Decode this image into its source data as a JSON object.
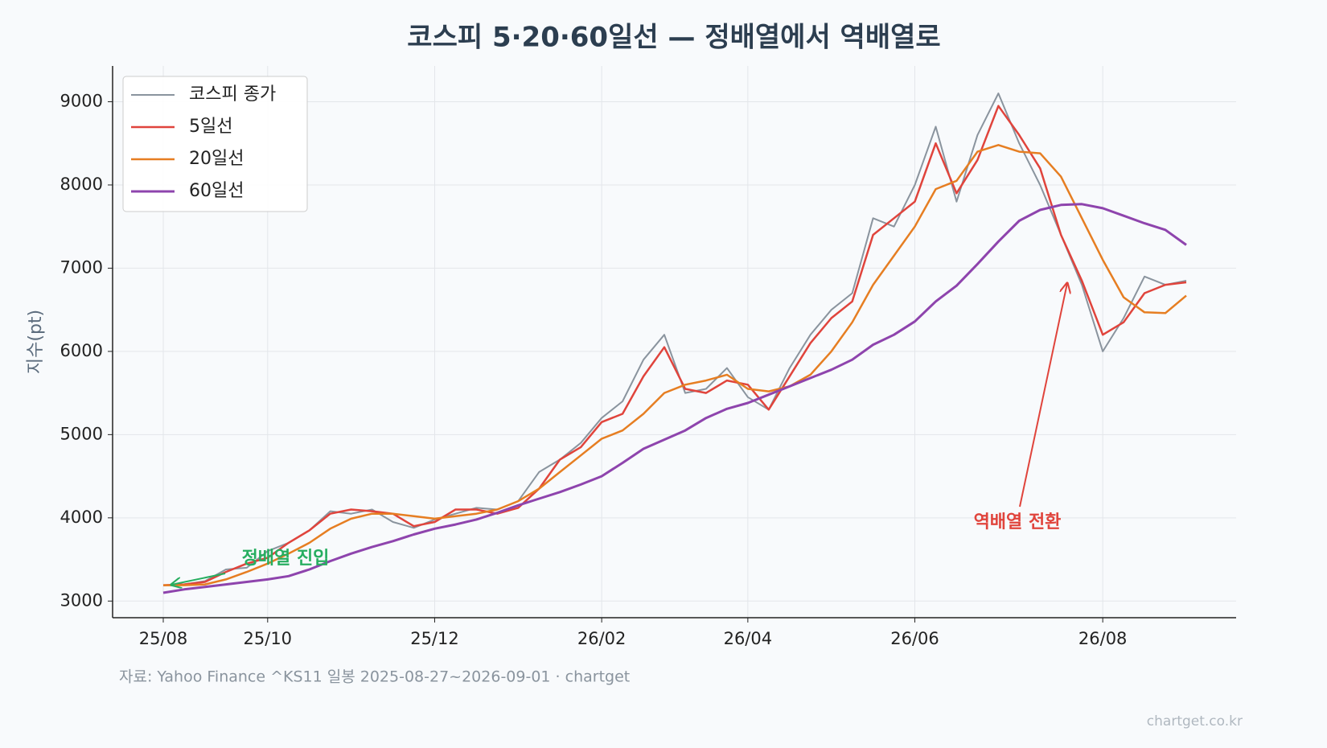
{
  "chart_data": {
    "type": "line",
    "title": "코스피 5·20·60일선 — 정배열에서 역배열로",
    "y_label": "지수(pt)",
    "source": "자료: Yahoo Finance ^KS11 일봉 2025-08-27~2026-09-01 · chartget",
    "watermark": "chartget.co.kr",
    "categories": [
      "25/08",
      null,
      null,
      null,
      null,
      "25/10",
      null,
      null,
      null,
      null,
      null,
      null,
      null,
      "25/12",
      null,
      null,
      null,
      null,
      null,
      null,
      null,
      "26/02",
      null,
      null,
      null,
      null,
      null,
      null,
      "26/04",
      null,
      null,
      null,
      null,
      null,
      null,
      null,
      "26/06",
      null,
      null,
      null,
      null,
      null,
      null,
      null,
      null,
      "26/08",
      null,
      null,
      null,
      null
    ],
    "series": [
      {
        "name": "코스피 종가",
        "color": "#8a949e",
        "width": 2,
        "values": [
          3190,
          3200,
          3240,
          3380,
          3400,
          3600,
          3700,
          3850,
          4080,
          4050,
          4100,
          3950,
          3880,
          3980,
          4050,
          4120,
          4100,
          4200,
          4550,
          4700,
          4900,
          5200,
          5400,
          5900,
          6200,
          5500,
          5550,
          5800,
          5450,
          5300,
          5800,
          6200,
          6500,
          6700,
          7600,
          7500,
          8000,
          8700,
          7800,
          8600,
          9100,
          8500,
          8000,
          7400,
          6800,
          6000,
          6400,
          6900,
          6800,
          6850
        ]
      },
      {
        "name": "5일선",
        "color": "#e0443c",
        "width": 2.5,
        "values": [
          3190,
          3200,
          3230,
          3350,
          3450,
          3520,
          3700,
          3850,
          4050,
          4100,
          4080,
          4050,
          3900,
          3950,
          4100,
          4100,
          4050,
          4120,
          4350,
          4700,
          4850,
          5150,
          5250,
          5700,
          6050,
          5550,
          5500,
          5650,
          5600,
          5300,
          5700,
          6100,
          6400,
          6600,
          7400,
          7600,
          7800,
          8500,
          7900,
          8300,
          8950,
          8600,
          8200,
          7400,
          6850,
          6200,
          6350,
          6700,
          6800,
          6830
        ]
      },
      {
        "name": "20일선",
        "color": "#e67e22",
        "width": 2.5,
        "values": [
          3190,
          3190,
          3200,
          3260,
          3350,
          3450,
          3570,
          3700,
          3870,
          3990,
          4050,
          4050,
          4020,
          3990,
          4020,
          4050,
          4100,
          4200,
          4350,
          4550,
          4750,
          4950,
          5050,
          5250,
          5500,
          5600,
          5650,
          5720,
          5550,
          5520,
          5580,
          5720,
          6000,
          6350,
          6800,
          7150,
          7500,
          7950,
          8050,
          8400,
          8480,
          8400,
          8380,
          8100,
          7600,
          7100,
          6650,
          6470,
          6460,
          6670
        ]
      },
      {
        "name": "60일선",
        "color": "#8e44ad",
        "width": 3,
        "values": [
          3100,
          3140,
          3170,
          3200,
          3230,
          3260,
          3300,
          3380,
          3480,
          3570,
          3650,
          3720,
          3800,
          3870,
          3920,
          3980,
          4060,
          4150,
          4230,
          4310,
          4400,
          4500,
          4660,
          4830,
          4940,
          5050,
          5200,
          5310,
          5380,
          5480,
          5580,
          5680,
          5780,
          5900,
          6080,
          6200,
          6360,
          6600,
          6790,
          7050,
          7320,
          7570,
          7700,
          7760,
          7770,
          7720,
          7630,
          7540,
          7460,
          7280
        ]
      }
    ],
    "ylim": [
      2800,
      9430
    ],
    "yticks": [
      3000,
      4000,
      5000,
      6000,
      7000,
      8000,
      9000
    ],
    "grid": true,
    "legend": "upper-left",
    "annotations": [
      {
        "text": "정배열 진입",
        "color": "#27ae60"
      },
      {
        "text": "역배열 전환",
        "color": "#e0443c"
      }
    ]
  }
}
